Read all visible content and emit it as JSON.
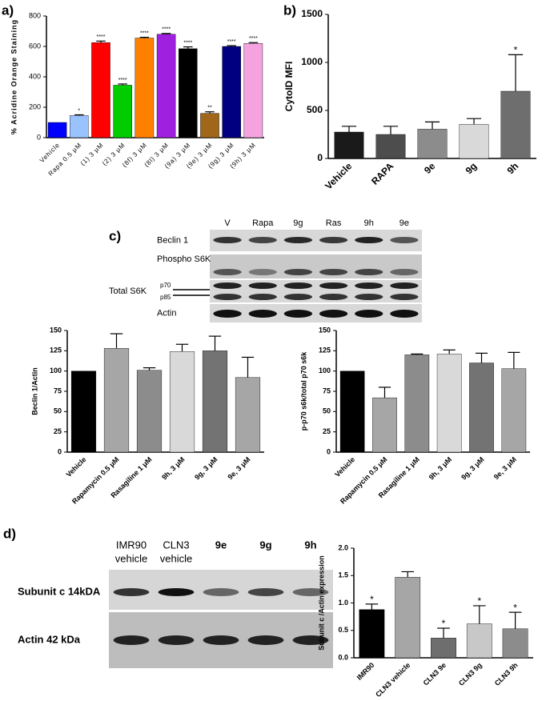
{
  "panel_labels": [
    "a)",
    "b)",
    "c)",
    "d)"
  ],
  "chart_data": [
    {
      "type": "bar",
      "y_label": "% Acridine Orange Staining",
      "categories": [
        "Vehicle",
        "Rapa 0.5 μM",
        "(1) 3 μM",
        "(2) 3 μM",
        "(8f) 3 μM",
        "(8l) 3 μM",
        "(9a) 3 μM",
        "(9e) 3 μM",
        "(9g) 3 μM",
        "(9h) 3 μM"
      ],
      "values": [
        100,
        145,
        625,
        345,
        655,
        680,
        585,
        160,
        600,
        620
      ],
      "errors": [
        0,
        5,
        10,
        8,
        5,
        5,
        12,
        10,
        5,
        5
      ],
      "stars": [
        null,
        "*",
        "****",
        "****",
        "****",
        "****",
        "****",
        "**",
        "****",
        "****"
      ],
      "colors": [
        "#0000ff",
        "#99c2ff",
        "#ff0000",
        "#00cc00",
        "#ff8000",
        "#a020e0",
        "#000000",
        "#a0661a",
        "#000080",
        "#f5a3e0"
      ],
      "ylim": [
        0,
        800
      ],
      "yticks": [
        0,
        200,
        400,
        600,
        800
      ]
    },
    {
      "type": "bar",
      "y_label": "CytoID MFI",
      "categories": [
        "Vehicle",
        "RAPA",
        "9e",
        "9g",
        "9h"
      ],
      "values": [
        275,
        250,
        305,
        355,
        700
      ],
      "errors": [
        60,
        85,
        75,
        60,
        380
      ],
      "stars": [
        null,
        null,
        null,
        null,
        "*"
      ],
      "colors": [
        "#1a1a1a",
        "#4d4d4d",
        "#8c8c8c",
        "#d9d9d9",
        "#6e6e6e"
      ],
      "ylim": [
        0,
        1500
      ],
      "yticks": [
        0,
        500,
        1000,
        1500
      ]
    },
    {
      "type": "bar",
      "y_label": "Beclin 1/Actin",
      "categories": [
        "Vehicle",
        "Rapamycin 0.5 μM",
        "Rasagiline 1 μM",
        "9h, 3 μM",
        "9g, 3 μM",
        "9e, 3 μM"
      ],
      "values": [
        100,
        128,
        101,
        124,
        125,
        92
      ],
      "errors": [
        0,
        18,
        3,
        9,
        18,
        25
      ],
      "colors": [
        "#000000",
        "#a6a6a6",
        "#8c8c8c",
        "#d9d9d9",
        "#737373",
        "#a6a6a6"
      ],
      "ylim": [
        0,
        150
      ],
      "yticks": [
        0,
        25,
        50,
        75,
        100,
        125,
        150
      ]
    },
    {
      "type": "bar",
      "y_label": "p-p70 s6k/total p70 s6k",
      "categories": [
        "Vehicle",
        "Rapamycin 0.5 μM",
        "Rasagiline 1 μM",
        "9h, 3 μM",
        "9g, 3 μM",
        "9e, 3 μM"
      ],
      "values": [
        100,
        67,
        120,
        121,
        110,
        103
      ],
      "errors": [
        0,
        13,
        1,
        5,
        12,
        20
      ],
      "colors": [
        "#000000",
        "#a6a6a6",
        "#8c8c8c",
        "#d9d9d9",
        "#737373",
        "#a6a6a6"
      ],
      "ylim": [
        0,
        150
      ],
      "yticks": [
        0,
        25,
        50,
        75,
        100,
        125,
        150
      ]
    },
    {
      "type": "bar",
      "y_label": "Subunit c /Actin expression",
      "categories": [
        "IMR90",
        "CLN3 vehicle",
        "CLN3 9e",
        "CLN3 9g",
        "CLN3 9h"
      ],
      "values": [
        0.88,
        1.47,
        0.36,
        0.62,
        0.53
      ],
      "errors": [
        0.1,
        0.1,
        0.18,
        0.33,
        0.3
      ],
      "stars": [
        "*",
        null,
        "*",
        "*",
        "*"
      ],
      "colors": [
        "#000000",
        "#a6a6a6",
        "#6e6e6e",
        "#c8c8c8",
        "#8c8c8c"
      ],
      "ylim": [
        0,
        2.0
      ],
      "yticks": [
        {
          "value": 0,
          "label": "0.0"
        },
        {
          "value": 0.5,
          "label": "0.5"
        },
        {
          "value": 1,
          "label": "1.0"
        },
        {
          "value": 1.5,
          "label": "1.5"
        },
        {
          "value": 2,
          "label": "2.0"
        }
      ]
    }
  ],
  "blot_c": {
    "lanes": [
      "V",
      "Rapa",
      "9g",
      "Ras",
      "9h",
      "9e"
    ],
    "rows": [
      "Beclin 1",
      "Phospho S6K",
      "Total S6K",
      "Actin"
    ],
    "sub_labels": [
      "p70",
      "p85"
    ]
  },
  "blot_d": {
    "lanes": [
      [
        "IMR90",
        "vehicle"
      ],
      [
        "CLN3",
        "vehicle"
      ],
      [
        "9e"
      ],
      [
        "9g"
      ],
      [
        "9h"
      ]
    ],
    "rows": [
      "Subunit c 14kDA",
      "Actin 42 kDa"
    ]
  }
}
